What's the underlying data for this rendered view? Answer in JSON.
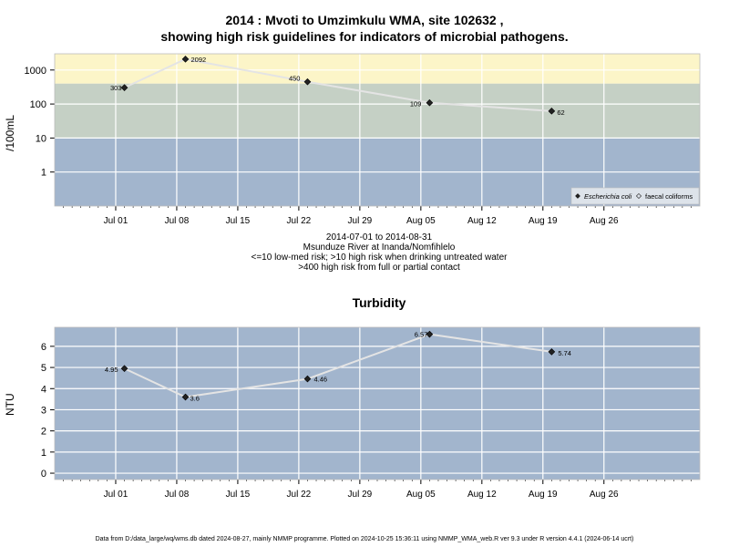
{
  "chart_data": [
    {
      "type": "line",
      "title": "2014 : Mvoti to Umzimkulu WMA, site 102632 ,",
      "subtitle": "showing high risk guidelines for indicators of microbial pathogens.",
      "ylabel": "/100mL",
      "yscale": "log",
      "ylim": [
        0.1,
        3000
      ],
      "yticks": [
        1,
        10,
        100,
        1000
      ],
      "ytick_labels": [
        "1",
        "10",
        "100",
        "1000"
      ],
      "xlim": [
        "2014-06-24",
        "2014-09-06"
      ],
      "xticks": [
        "2014-07-01",
        "2014-07-08",
        "2014-07-15",
        "2014-07-22",
        "2014-07-29",
        "2014-08-05",
        "2014-08-12",
        "2014-08-19",
        "2014-08-26"
      ],
      "xtick_labels": [
        "Jul 01",
        "Jul 08",
        "Jul 15",
        "Jul 22",
        "Jul 29",
        "Aug 05",
        "Aug 12",
        "Aug 19",
        "Aug 26"
      ],
      "bands": [
        {
          "from": 0.1,
          "to": 10,
          "color": "#a2b5cd"
        },
        {
          "from": 10,
          "to": 400,
          "color": "#c5d0c5"
        },
        {
          "from": 400,
          "to": 3000,
          "color": "#fcf5c8"
        }
      ],
      "grid": true,
      "legend_position": "bottom-right",
      "series": [
        {
          "name": "Escherichia coli",
          "marker": "filled-diamond",
          "x": [
            "2014-07-02",
            "2014-07-09",
            "2014-07-23",
            "2014-08-06",
            "2014-08-20"
          ],
          "y": [
            303,
            2092,
            450,
            109,
            62
          ],
          "labels": [
            "303",
            "2092",
            "450",
            "109",
            "62"
          ]
        },
        {
          "name": "faecal coliforms",
          "marker": "open-diamond",
          "x": [],
          "y": []
        }
      ],
      "caption_lines": [
        "2014-07-01 to 2014-08-31",
        "Msunduze River at Inanda/Nomfihlelo",
        "<=10 low-med risk; >10 high risk when drinking untreated water",
        ">400 high risk from full or partial contact"
      ]
    },
    {
      "type": "line",
      "title": "Turbidity",
      "ylabel": "NTU",
      "ylim": [
        -0.3,
        6.9
      ],
      "yticks": [
        0,
        1,
        2,
        3,
        4,
        5,
        6
      ],
      "ytick_labels": [
        "0",
        "1",
        "2",
        "3",
        "4",
        "5",
        "6"
      ],
      "xlim": [
        "2014-06-24",
        "2014-09-06"
      ],
      "xticks": [
        "2014-07-01",
        "2014-07-08",
        "2014-07-15",
        "2014-07-22",
        "2014-07-29",
        "2014-08-05",
        "2014-08-12",
        "2014-08-19",
        "2014-08-26"
      ],
      "xtick_labels": [
        "Jul 01",
        "Jul 08",
        "Jul 15",
        "Jul 22",
        "Jul 29",
        "Aug 05",
        "Aug 12",
        "Aug 19",
        "Aug 26"
      ],
      "background": "#a2b5cd",
      "grid": true,
      "series": [
        {
          "marker": "filled-diamond",
          "x": [
            "2014-07-02",
            "2014-07-09",
            "2014-07-23",
            "2014-08-06",
            "2014-08-20"
          ],
          "y": [
            4.95,
            3.6,
            4.46,
            6.57,
            5.74
          ],
          "labels": [
            "4.95",
            "3.6",
            "4.46",
            "6.57",
            "5.74"
          ]
        }
      ]
    }
  ],
  "footer": "Data from D:/data_large/wq/wms.db dated 2024-08-27, mainly NMMP programme. Plotted on 2024-10-25 15:36:11 using NMMP_WMA_web.R ver 9.3 under R version 4.4.1 (2024-06-14 ucrt)"
}
